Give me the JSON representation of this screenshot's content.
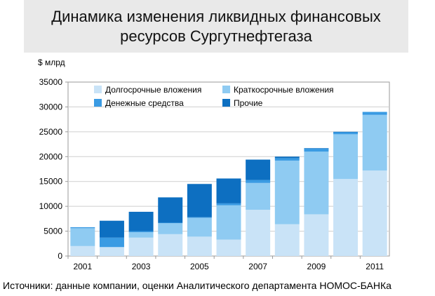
{
  "header": {
    "title_line1": "Динамика изменения ликвидных финансовых",
    "title_line2": "ресурсов Сургутнефтегаза"
  },
  "unit_label": "$ млрд",
  "source": "Источники: данные компании, оценки Аналитического департамента НОМОС-БАНКа",
  "chart_data": {
    "type": "bar",
    "stacked": true,
    "title": "Динамика изменения ликвидных финансовых ресурсов Сургутнефтегаза",
    "ylabel": "$ млрд",
    "ylim": [
      0,
      35000
    ],
    "yticks": [
      0,
      5000,
      10000,
      15000,
      20000,
      25000,
      30000,
      35000
    ],
    "categories": [
      "2001",
      "2002",
      "2003",
      "2004",
      "2005",
      "2006",
      "2007",
      "2008",
      "2009",
      "2010",
      "2011"
    ],
    "xtick_labels": [
      "2001",
      "",
      "2003",
      "",
      "2005",
      "",
      "2007",
      "",
      "2009",
      "",
      "2011"
    ],
    "grid": true,
    "legend_position": "top",
    "series": [
      {
        "name": "Долгосрочные вложения",
        "color": "#c9e3f7",
        "values": [
          2000,
          1800,
          3700,
          4400,
          3900,
          3300,
          9300,
          6400,
          8400,
          15500,
          17200
        ]
      },
      {
        "name": "Краткосрочные вложения",
        "color": "#8fcbf2",
        "values": [
          3600,
          0,
          1100,
          2200,
          3800,
          6900,
          5400,
          12800,
          12600,
          9000,
          11200
        ]
      },
      {
        "name": "Денежные средства",
        "color": "#3a9be3",
        "values": [
          200,
          1900,
          200,
          100,
          100,
          400,
          600,
          500,
          600,
          400,
          600
        ]
      },
      {
        "name": "Прочие",
        "color": "#0d6fc1",
        "values": [
          0,
          3400,
          3900,
          5100,
          6700,
          5000,
          4100,
          300,
          100,
          100,
          0
        ]
      }
    ]
  }
}
